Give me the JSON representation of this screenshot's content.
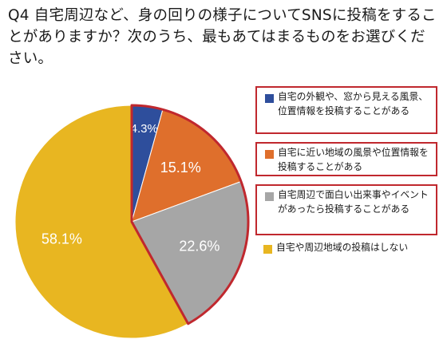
{
  "question": {
    "text": "Q4 自宅周辺など、身の回りの様子についてSNSに投稿をすることがありますか？次のうち、最もあてはまるものをお選びください。"
  },
  "chart_data": {
    "type": "pie",
    "title": "Q4 自宅周辺など、身の回りの様子についてSNSに投稿をすることがありますか？次のうち、最もあてはまるものをお選びください。",
    "start_angle_deg": 0,
    "direction": "clockwise",
    "highlight_color": "#c0282e",
    "slices": [
      {
        "label": "自宅の外観や、窓から見える風景、位置情報を投稿することがある",
        "value": 4.3,
        "display": "4.3%",
        "color": "#2e4e9c",
        "highlighted": true
      },
      {
        "label": "自宅に近い地域の風景や位置情報を投稿することがある",
        "value": 15.1,
        "display": "15.1%",
        "color": "#df6f2c",
        "highlighted": true
      },
      {
        "label": "自宅周辺で面白い出来事やイベントがあったら投稿することがある",
        "value": 22.6,
        "display": "22.6%",
        "color": "#a6a6a6",
        "highlighted": true
      },
      {
        "label": "自宅や周辺地域の投稿はしない",
        "value": 58.1,
        "display": "58.1%",
        "color": "#e8b621",
        "highlighted": false
      }
    ],
    "legend_position": "right"
  }
}
